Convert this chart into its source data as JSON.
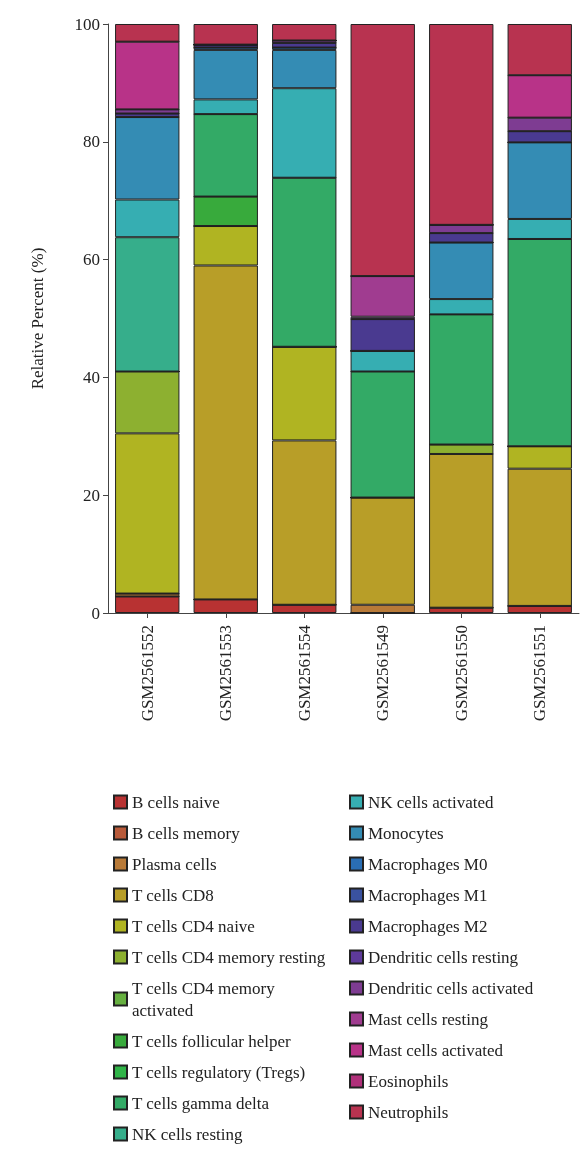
{
  "chart_data": {
    "type": "bar",
    "stacked": true,
    "ylabel": "Relative Percent (%)",
    "categories": [
      "GSM2561552",
      "GSM2561553",
      "GSM2561554",
      "GSM2561549",
      "GSM2561550",
      "GSM2561551"
    ],
    "ylim": [
      0,
      100
    ],
    "yticks": [
      0,
      20,
      40,
      60,
      80,
      100
    ],
    "grid": false,
    "legend": "bottom",
    "series": [
      {
        "name": "B cells naive",
        "color": "#b83232",
        "values": [
          2.8,
          2.3,
          1.4,
          0,
          0.9,
          1.2
        ]
      },
      {
        "name": "B cells memory",
        "color": "#b85a3a",
        "values": [
          0,
          0,
          0,
          0,
          0,
          0
        ]
      },
      {
        "name": "Plasma cells",
        "color": "#b87a38",
        "values": [
          0.5,
          0,
          0,
          1.4,
          0,
          0
        ]
      },
      {
        "name": "T cells CD8",
        "color": "#b89e28",
        "values": [
          0,
          56.7,
          27.9,
          18.2,
          26.1,
          23.3
        ]
      },
      {
        "name": "T cells CD4 naive",
        "color": "#b0b422",
        "values": [
          27.2,
          6.7,
          15.9,
          0,
          0,
          3.8
        ]
      },
      {
        "name": "T cells CD4 memory resting",
        "color": "#8db030",
        "values": [
          10.5,
          0,
          0,
          0,
          1.6,
          0
        ]
      },
      {
        "name": "T cells CD4 memory activated",
        "color": "#66b040",
        "values": [
          0,
          0,
          0,
          0,
          0,
          0
        ]
      },
      {
        "name": "T cells follicular helper",
        "color": "#38aa3c",
        "values": [
          0,
          5.0,
          0,
          0,
          0,
          0
        ]
      },
      {
        "name": "T cells regulatory (Tregs)",
        "color": "#30b448",
        "values": [
          0,
          0,
          0,
          0,
          0,
          0
        ]
      },
      {
        "name": "T cells gamma delta",
        "color": "#33aa66",
        "values": [
          0,
          14.0,
          28.7,
          21.4,
          22.1,
          35.2
        ]
      },
      {
        "name": "NK cells resting",
        "color": "#36ae8b",
        "values": [
          22.8,
          0,
          0,
          0,
          0,
          0
        ]
      },
      {
        "name": "NK cells activated",
        "color": "#36aeb2",
        "values": [
          6.4,
          2.5,
          15.2,
          3.5,
          2.6,
          3.4
        ]
      },
      {
        "name": "Monocytes",
        "color": "#348cb4",
        "values": [
          14.0,
          8.4,
          6.5,
          0,
          9.6,
          13.0
        ]
      },
      {
        "name": "Macrophages M0",
        "color": "#2a6eb4",
        "values": [
          null,
          0.4,
          0.4,
          0,
          0,
          0
        ]
      },
      {
        "name": "Macrophages M1",
        "color": "#3a52a0",
        "values": [
          0,
          0,
          0,
          0,
          0,
          0
        ]
      },
      {
        "name": "Macrophages M2",
        "color": "#4a3a90",
        "values": [
          0.6,
          0.5,
          0.8,
          5.4,
          1.6,
          1.9
        ]
      },
      {
        "name": "Dendritic cells resting",
        "color": "#5e3a9a",
        "values": [
          0,
          0,
          0,
          0,
          0,
          0
        ]
      },
      {
        "name": "Dendritic cells activated",
        "color": "#7e3c92",
        "values": [
          0.7,
          0,
          0.4,
          0.4,
          1.4,
          2.3
        ]
      },
      {
        "name": "Mast cells resting",
        "color": "#a03c90",
        "values": [
          0,
          0,
          0,
          6.9,
          0,
          0
        ]
      },
      {
        "name": "Mast cells activated",
        "color": "#b83388",
        "values": [
          11.5,
          0,
          0,
          0,
          0,
          7.2
        ]
      },
      {
        "name": "Eosinophils",
        "color": "#b0307a",
        "values": [
          0,
          0,
          0,
          0,
          0,
          0
        ]
      },
      {
        "name": "Neutrophils",
        "color": "#b83350",
        "values": [
          3.0,
          3.5,
          2.8,
          42.8,
          34.1,
          8.7
        ]
      }
    ]
  }
}
